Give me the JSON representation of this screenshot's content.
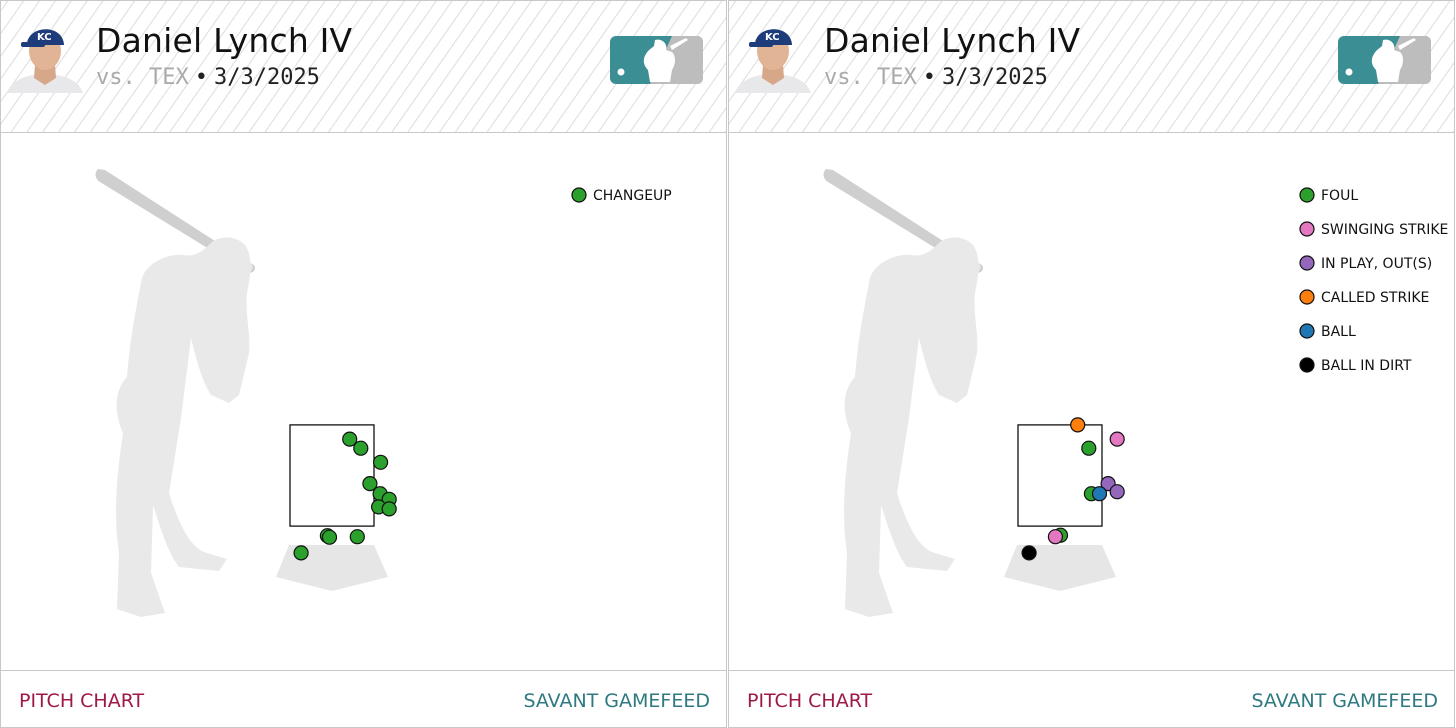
{
  "panels": [
    {
      "player_name": "Daniel Lynch IV",
      "opponent": "vs. TEX",
      "separator": "•",
      "date": "3/3/2025",
      "footer_left": "PITCH CHART",
      "footer_right": "SAVANT GAMEFEED"
    },
    {
      "player_name": "Daniel Lynch IV",
      "opponent": "vs. TEX",
      "separator": "•",
      "date": "3/3/2025",
      "footer_left": "PITCH CHART",
      "footer_right": "SAVANT GAMEFEED"
    }
  ],
  "colors": {
    "changeup": "#2ca02c",
    "foul": "#2ca02c",
    "swinging_strike": "#e377c2",
    "in_play_out": "#9467bd",
    "called_strike": "#ff7f0e",
    "ball": "#1f77b4",
    "ball_in_dirt": "#000000",
    "footer_left": "#9e1946",
    "footer_right": "#2e7a80",
    "mlb_logo": "#3a8e94"
  },
  "icons": [
    "kc-player-headshot",
    "mlb-logo-icon",
    "batter-silhouette-icon",
    "home-plate-icon"
  ],
  "chart_data": [
    {
      "type": "scatter",
      "title": "",
      "xlabel": "",
      "ylabel": "",
      "xlim": [
        -2.5,
        2.5
      ],
      "ylim": [
        -0.5,
        4.7
      ],
      "strike_zone": {
        "x": [
          -0.83,
          0.83
        ],
        "y": [
          1.5,
          3.5
        ]
      },
      "legend": [
        {
          "name": "CHANGEUP",
          "color": "#2ca02c"
        }
      ],
      "legend_position": "top-right",
      "series": [
        {
          "name": "CHANGEUP",
          "color": "#2ca02c",
          "points": [
            [
              0.35,
              3.22
            ],
            [
              0.57,
              3.04
            ],
            [
              0.96,
              2.76
            ],
            [
              0.75,
              2.34
            ],
            [
              0.95,
              2.14
            ],
            [
              1.13,
              2.03
            ],
            [
              0.92,
              1.88
            ],
            [
              1.13,
              1.84
            ],
            [
              0.5,
              1.29
            ],
            [
              -0.09,
              1.31
            ],
            [
              -0.05,
              1.28
            ],
            [
              -0.61,
              0.97
            ]
          ]
        }
      ]
    },
    {
      "type": "scatter",
      "title": "",
      "xlabel": "",
      "ylabel": "",
      "xlim": [
        -2.5,
        2.5
      ],
      "ylim": [
        -0.5,
        4.7
      ],
      "strike_zone": {
        "x": [
          -0.83,
          0.83
        ],
        "y": [
          1.5,
          3.5
        ]
      },
      "legend": [
        {
          "name": "FOUL",
          "color": "#2ca02c"
        },
        {
          "name": "SWINGING STRIKE",
          "color": "#e377c2"
        },
        {
          "name": "IN PLAY, OUT(S)",
          "color": "#9467bd"
        },
        {
          "name": "CALLED STRIKE",
          "color": "#ff7f0e"
        },
        {
          "name": "BALL",
          "color": "#1f77b4"
        },
        {
          "name": "BALL IN DIRT",
          "color": "#000000"
        }
      ],
      "legend_position": "top-right",
      "series": [
        {
          "name": "FOUL",
          "color": "#2ca02c",
          "points": [
            [
              0.57,
              3.04
            ],
            [
              0.62,
              2.14
            ],
            [
              0.01,
              1.32
            ]
          ]
        },
        {
          "name": "SWINGING STRIKE",
          "color": "#e377c2",
          "points": [
            [
              1.13,
              3.22
            ],
            [
              -0.09,
              1.29
            ]
          ]
        },
        {
          "name": "IN PLAY, OUT(S)",
          "color": "#9467bd",
          "points": [
            [
              0.95,
              2.34
            ],
            [
              1.13,
              2.18
            ]
          ]
        },
        {
          "name": "CALLED STRIKE",
          "color": "#ff7f0e",
          "points": [
            [
              0.35,
              3.5
            ]
          ]
        },
        {
          "name": "BALL",
          "color": "#1f77b4",
          "points": [
            [
              0.78,
              2.14
            ]
          ]
        },
        {
          "name": "BALL IN DIRT",
          "color": "#000000",
          "points": [
            [
              -0.61,
              0.97
            ]
          ]
        }
      ]
    }
  ]
}
